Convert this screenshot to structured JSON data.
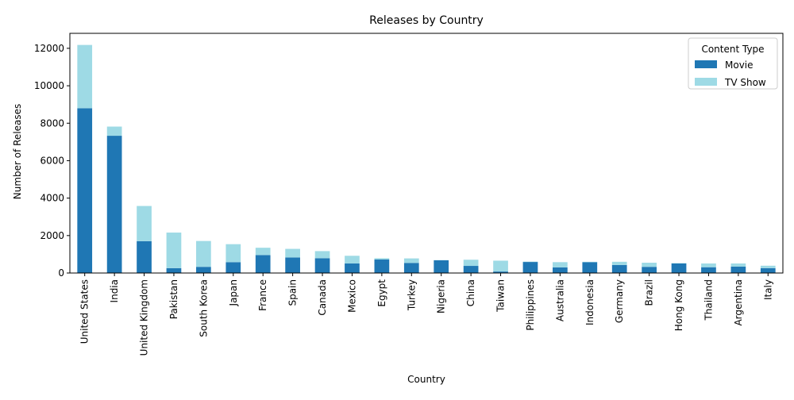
{
  "chart_data": {
    "type": "bar",
    "stacked": true,
    "title": "Releases by Country",
    "xlabel": "Country",
    "ylabel": "Number of Releases",
    "ylim": [
      0,
      12800
    ],
    "yticks": [
      "0",
      "2000",
      "4000",
      "6000",
      "8000",
      "10000",
      "12000"
    ],
    "categories": [
      "United States",
      "India",
      "United Kingdom",
      "Pakistan",
      "South Korea",
      "Japan",
      "France",
      "Spain",
      "Canada",
      "Mexico",
      "Egypt",
      "Turkey",
      "Nigeria",
      "China",
      "Taiwan",
      "Philippines",
      "Australia",
      "Indonesia",
      "Germany",
      "Brazil",
      "Hong Kong",
      "Thailand",
      "Argentina",
      "Italy"
    ],
    "series": [
      {
        "name": "Movie",
        "color": "#1f77b4",
        "values": [
          8800,
          7330,
          1700,
          260,
          330,
          580,
          960,
          830,
          790,
          510,
          720,
          540,
          680,
          380,
          80,
          590,
          300,
          580,
          430,
          330,
          510,
          310,
          340,
          260
        ]
      },
      {
        "name": "TV Show",
        "color": "#9edae5",
        "values": [
          3380,
          490,
          1880,
          1900,
          1380,
          960,
          390,
          460,
          380,
          410,
          70,
          240,
          10,
          330,
          580,
          20,
          280,
          20,
          170,
          220,
          20,
          200,
          170,
          130
        ]
      }
    ],
    "legend": {
      "title": "Content Type",
      "position": "top-right"
    },
    "grid": false
  }
}
